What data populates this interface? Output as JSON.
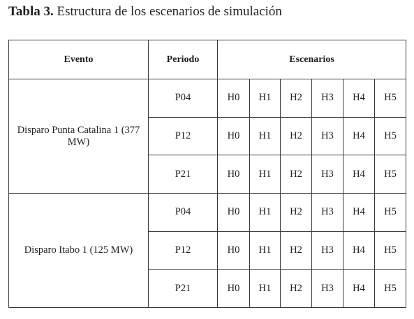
{
  "caption": {
    "label": "Tabla 3.",
    "text": "Estructura de los escenarios de simulación"
  },
  "table": {
    "headers": [
      "Evento",
      "Periodo",
      "Escenarios"
    ],
    "groups": [
      {
        "evento": "Disparo Punta Catalina 1 (377 MW)",
        "rows": [
          {
            "periodo": "P04",
            "escenarios": [
              "H0",
              "H1",
              "H2",
              "H3",
              "H4",
              "H5"
            ]
          },
          {
            "periodo": "P12",
            "escenarios": [
              "H0",
              "H1",
              "H2",
              "H3",
              "H4",
              "H5"
            ]
          },
          {
            "periodo": "P21",
            "escenarios": [
              "H0",
              "H1",
              "H2",
              "H3",
              "H4",
              "H5"
            ]
          }
        ]
      },
      {
        "evento": "Disparo Itabo 1 (125 MW)",
        "rows": [
          {
            "periodo": "P04",
            "escenarios": [
              "H0",
              "H1",
              "H2",
              "H3",
              "H4",
              "H5"
            ]
          },
          {
            "periodo": "P12",
            "escenarios": [
              "H0",
              "H1",
              "H2",
              "H3",
              "H4",
              "H5"
            ]
          },
          {
            "periodo": "P21",
            "escenarios": [
              "H0",
              "H1",
              "H2",
              "H3",
              "H4",
              "H5"
            ]
          }
        ]
      }
    ]
  }
}
